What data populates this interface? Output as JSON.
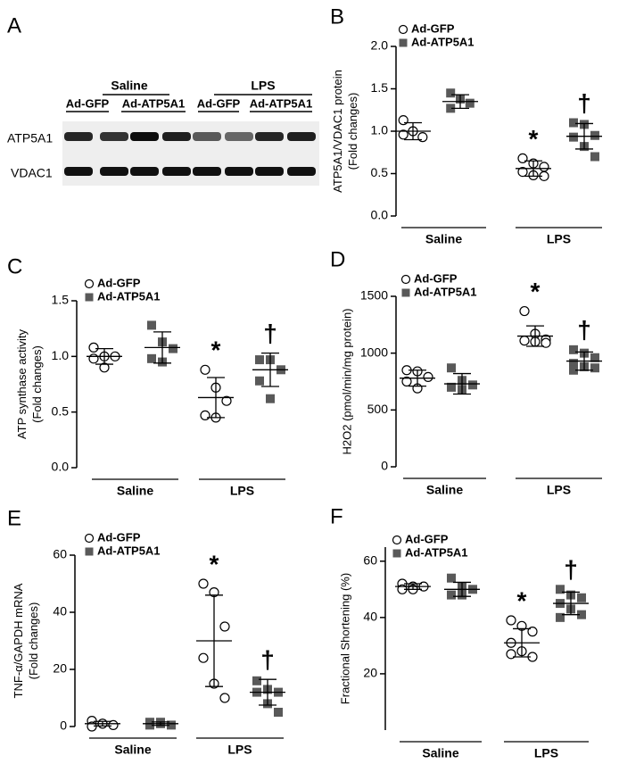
{
  "blot": {
    "panel": "A",
    "groups": [
      "Saline",
      "LPS"
    ],
    "lanes": [
      "Ad-GFP",
      "Ad-ATP5A1",
      "Ad-GFP",
      "Ad-ATP5A1"
    ],
    "rows": [
      "ATP5A1",
      "VDAC1"
    ]
  },
  "chart_data": [
    {
      "type": "dotplot",
      "panel": "B",
      "ylabel": [
        "ATP5A1/VDAC1 protein",
        "(Fold changes)"
      ],
      "categories": [
        "Saline",
        "LPS"
      ],
      "ylim": [
        0,
        2
      ],
      "yticks": [
        {
          "value": 0,
          "label": "0.0"
        },
        {
          "value": 0.5,
          "label": "0.5"
        },
        {
          "value": 1,
          "label": "1.0"
        },
        {
          "value": 1.5,
          "label": "1.5"
        },
        {
          "value": 2,
          "label": "2.0"
        }
      ],
      "series": [
        {
          "name": "Ad-GFP",
          "marker": "circle-open",
          "color": "#000000",
          "points": [
            [
              1.13,
              1.0,
              0.93,
              0.96
            ],
            [
              0.68,
              0.62,
              0.58,
              0.52,
              0.48,
              0.47
            ]
          ],
          "mean": [
            1.0,
            0.56
          ],
          "sd": [
            0.1,
            0.09
          ]
        },
        {
          "name": "Ad-ATP5A1",
          "marker": "square",
          "color": "#595959",
          "points": [
            [
              1.45,
              1.38,
              1.33,
              1.27
            ],
            [
              1.1,
              1.08,
              0.95,
              0.93,
              0.82,
              0.7
            ]
          ],
          "mean": [
            1.35,
            0.94
          ],
          "sd": [
            0.08,
            0.15
          ]
        }
      ],
      "annotations": [
        {
          "text": "*",
          "category": 1,
          "series": 0
        },
        {
          "text": "†",
          "category": 1,
          "series": 1
        }
      ]
    },
    {
      "type": "dotplot",
      "panel": "C",
      "ylabel": [
        "ATP synthase activity",
        "(Fold changes)"
      ],
      "categories": [
        "Saline",
        "LPS"
      ],
      "ylim": [
        0,
        1.5
      ],
      "yticks": [
        {
          "value": 0,
          "label": "0.0"
        },
        {
          "value": 0.5,
          "label": "0.5"
        },
        {
          "value": 1,
          "label": "1.0"
        },
        {
          "value": 1.5,
          "label": "1.5"
        }
      ],
      "series": [
        {
          "name": "Ad-GFP",
          "marker": "circle-open",
          "color": "#000000",
          "points": [
            [
              1.08,
              1.0,
              1.0,
              0.98,
              0.9
            ],
            [
              0.88,
              0.72,
              0.6,
              0.47,
              0.45
            ]
          ],
          "mean": [
            1.0,
            0.63
          ],
          "sd": [
            0.07,
            0.18
          ]
        },
        {
          "name": "Ad-ATP5A1",
          "marker": "square",
          "color": "#595959",
          "points": [
            [
              1.28,
              1.13,
              1.07,
              0.98,
              0.95
            ],
            [
              0.97,
              0.97,
              0.88,
              0.78,
              0.62
            ]
          ],
          "mean": [
            1.08,
            0.88
          ],
          "sd": [
            0.14,
            0.15
          ]
        }
      ],
      "annotations": [
        {
          "text": "*",
          "category": 1,
          "series": 0
        },
        {
          "text": "†",
          "category": 1,
          "series": 1
        }
      ]
    },
    {
      "type": "dotplot",
      "panel": "D",
      "ylabel": [
        "H2O2 (pmol/min/mg protein)"
      ],
      "categories": [
        "Saline",
        "LPS"
      ],
      "ylim": [
        0,
        1500
      ],
      "yticks": [
        0,
        500,
        1000,
        1500
      ],
      "series": [
        {
          "name": "Ad-GFP",
          "marker": "circle-open",
          "color": "#000000",
          "points": [
            [
              850,
              840,
              790,
              750,
              690
            ],
            [
              1370,
              1170,
              1120,
              1110,
              1100,
              1090
            ]
          ],
          "mean": [
            780,
            1150
          ],
          "sd": [
            70,
            90
          ]
        },
        {
          "name": "Ad-ATP5A1",
          "marker": "square",
          "color": "#595959",
          "points": [
            [
              870,
              760,
              720,
              700,
              680
            ],
            [
              1030,
              1000,
              960,
              910,
              880,
              870,
              850
            ]
          ],
          "mean": [
            730,
            930
          ],
          "sd": [
            90,
            80
          ]
        }
      ],
      "annotations": [
        {
          "text": "*",
          "category": 1,
          "series": 0
        },
        {
          "text": "†",
          "category": 1,
          "series": 1
        }
      ]
    },
    {
      "type": "dotplot",
      "panel": "E",
      "ylabel": [
        "TNF-α/GAPDH mRNA",
        "(Fold changes)"
      ],
      "categories": [
        "Saline",
        "LPS"
      ],
      "ylim": [
        0,
        60
      ],
      "yticks": [
        0,
        20,
        40,
        60
      ],
      "series": [
        {
          "name": "Ad-GFP",
          "marker": "circle-open",
          "color": "#000000",
          "points": [
            [
              2,
              1,
              0.5,
              0,
              1
            ],
            [
              50,
              47,
              35,
              24,
              15,
              10
            ]
          ],
          "mean": [
            1,
            30
          ],
          "sd": [
            0.8,
            16
          ]
        },
        {
          "name": "Ad-ATP5A1",
          "marker": "square",
          "color": "#595959",
          "points": [
            [
              1.5,
              1,
              0.5,
              0.5,
              1.5
            ],
            [
              16,
              13,
              12,
              12,
              8,
              5
            ]
          ],
          "mean": [
            1,
            12
          ],
          "sd": [
            0.6,
            4.5
          ]
        }
      ],
      "annotations": [
        {
          "text": "*",
          "category": 1,
          "series": 0
        },
        {
          "text": "†",
          "category": 1,
          "series": 1
        }
      ]
    },
    {
      "type": "dotplot",
      "panel": "F",
      "ylabel": [
        "Fractional Shortening (%)"
      ],
      "categories": [
        "Saline",
        "LPS"
      ],
      "ylim": [
        0,
        65
      ],
      "yticks": [
        20,
        40,
        60
      ],
      "series": [
        {
          "name": "Ad-GFP",
          "marker": "circle-open",
          "color": "#000000",
          "points": [
            [
              52,
              51,
              51,
              50,
              50
            ],
            [
              39,
              37,
              35,
              31,
              28,
              26,
              27
            ]
          ],
          "mean": [
            51,
            31
          ],
          "sd": [
            1,
            5
          ]
        },
        {
          "name": "Ad-ATP5A1",
          "marker": "square",
          "color": "#595959",
          "points": [
            [
              54,
              51,
              50,
              48,
              48
            ],
            [
              50,
              48,
              47,
              45,
              43,
              41,
              40
            ]
          ],
          "mean": [
            50,
            45
          ],
          "sd": [
            2.5,
            4
          ]
        }
      ],
      "annotations": [
        {
          "text": "*",
          "category": 1,
          "series": 0
        },
        {
          "text": "†",
          "category": 1,
          "series": 1
        }
      ]
    }
  ]
}
